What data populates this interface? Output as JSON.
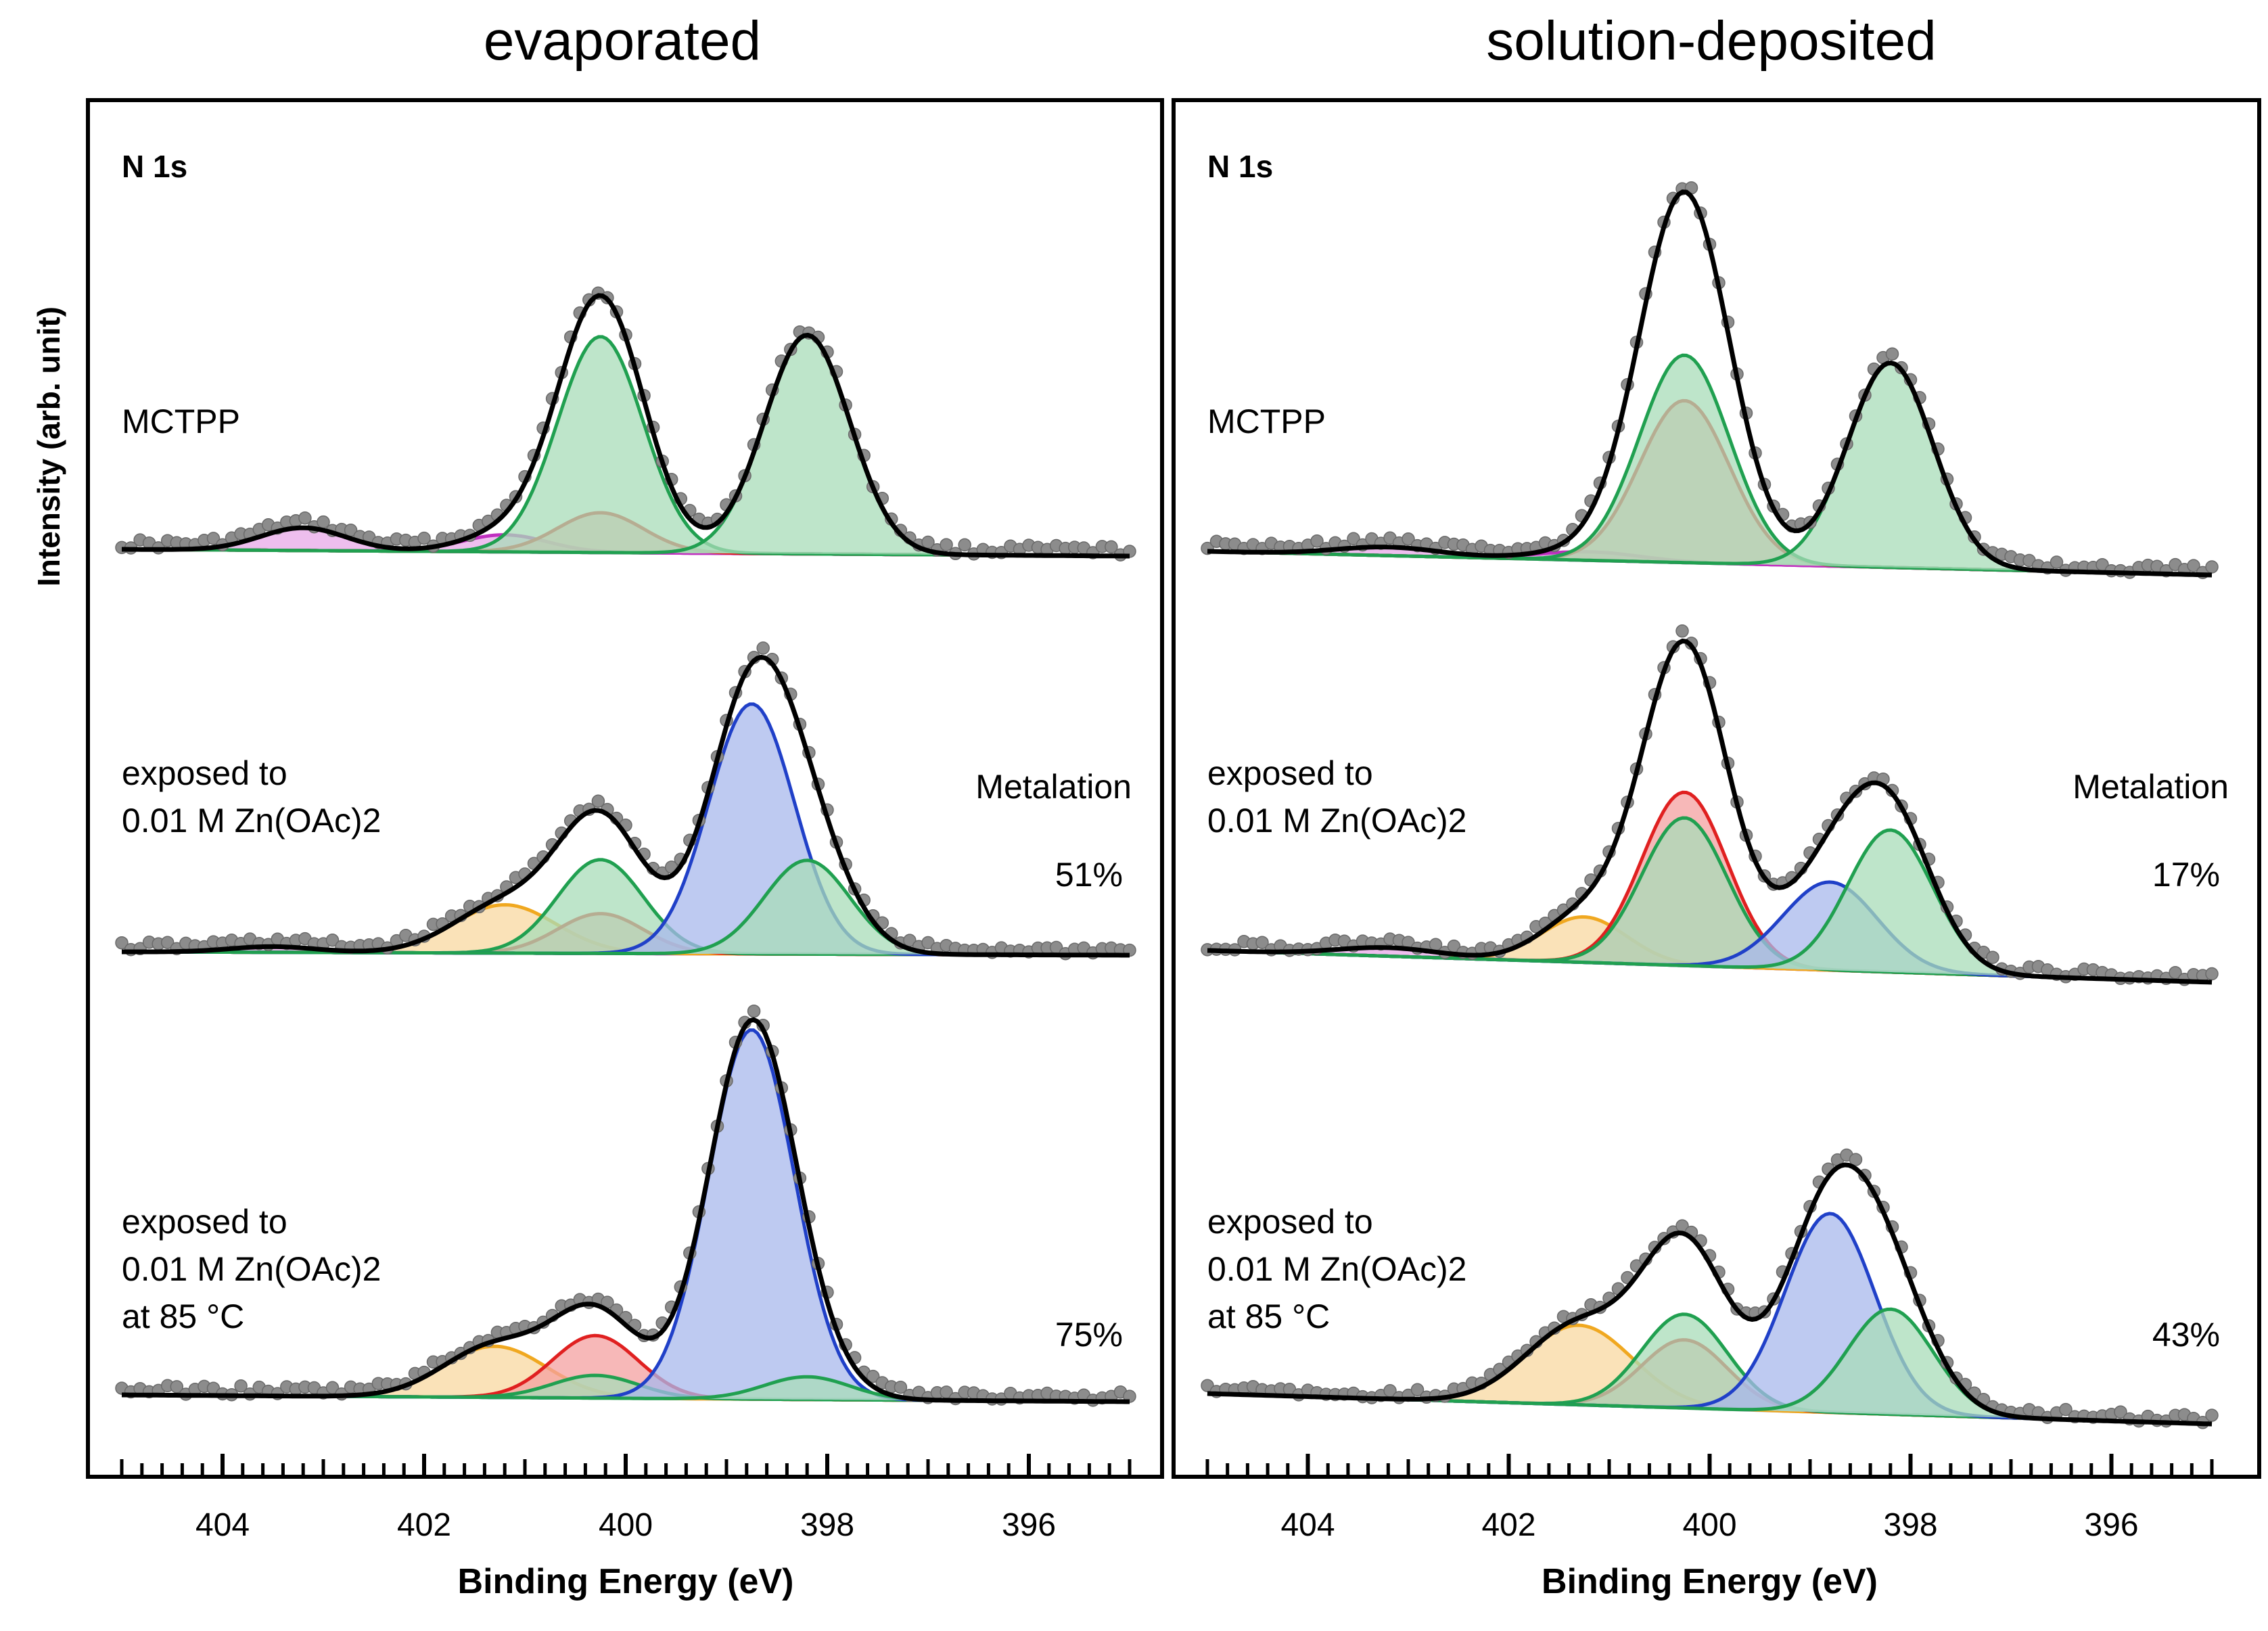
{
  "figure": {
    "ylabel": "Intensity (arb. unit)",
    "colors": {
      "data_points": "#8c8c8c",
      "fit": "#000000",
      "background": "#a6a6a6",
      "magenta": "#c030c0",
      "red": "#e02020",
      "green": "#20a050",
      "blue": "#2040c8",
      "orange": "#f0a820",
      "fill_red": "#f4a0a0",
      "fill_green": "#a8dcb8",
      "fill_blue": "#a8b8ec",
      "fill_orange": "#f8d8a0",
      "fill_magenta": "#e8a8e8"
    }
  },
  "chart_data": [
    {
      "type": "line",
      "title": "evaporated",
      "panel_label": "N 1s",
      "xlabel": "Binding Energy (eV)",
      "ylabel": "Intensity (arb. unit)",
      "xlim": [
        405,
        395
      ],
      "x_reversed": true,
      "xticks": [
        404,
        402,
        400,
        398,
        396
      ],
      "metalation_label": "Metalation",
      "spectra": [
        {
          "label_lines": [
            "MCTPP"
          ],
          "metalation": "",
          "components": [
            {
              "color": "magenta",
              "center": 403.2,
              "fwhm": 1.0,
              "height": 0.08
            },
            {
              "color": "magenta",
              "center": 401.2,
              "fwhm": 1.0,
              "height": 0.06
            },
            {
              "color": "red",
              "center": 400.25,
              "fwhm": 1.0,
              "height": 0.14
            },
            {
              "color": "green",
              "center": 400.25,
              "fwhm": 1.0,
              "height": 0.76
            },
            {
              "color": "green",
              "center": 398.2,
              "fwhm": 1.0,
              "height": 0.77
            }
          ]
        },
        {
          "label_lines": [
            "exposed to",
            "0.01 M Zn(OAc)2"
          ],
          "metalation": "51%",
          "components": [
            {
              "color": "magenta",
              "center": 403.5,
              "fwhm": 1.0,
              "height": 0.02
            },
            {
              "color": "orange",
              "center": 401.2,
              "fwhm": 1.2,
              "height": 0.17
            },
            {
              "color": "red",
              "center": 400.25,
              "fwhm": 1.0,
              "height": 0.14
            },
            {
              "color": "green",
              "center": 400.25,
              "fwhm": 1.0,
              "height": 0.33
            },
            {
              "color": "blue",
              "center": 398.75,
              "fwhm": 1.0,
              "height": 0.88
            },
            {
              "color": "green",
              "center": 398.2,
              "fwhm": 1.0,
              "height": 0.33
            }
          ]
        },
        {
          "label_lines": [
            "exposed to",
            "0.01 M Zn(OAc)2",
            "at 85 °C"
          ],
          "metalation": "75%",
          "components": [
            {
              "color": "orange",
              "center": 401.3,
              "fwhm": 1.2,
              "height": 0.18
            },
            {
              "color": "red",
              "center": 400.3,
              "fwhm": 1.0,
              "height": 0.22
            },
            {
              "color": "green",
              "center": 400.3,
              "fwhm": 1.0,
              "height": 0.08
            },
            {
              "color": "blue",
              "center": 398.75,
              "fwhm": 1.0,
              "height": 1.3
            },
            {
              "color": "green",
              "center": 398.2,
              "fwhm": 1.0,
              "height": 0.08
            }
          ]
        }
      ]
    },
    {
      "type": "line",
      "title": "solution-deposited",
      "panel_label": "N 1s",
      "xlabel": "Binding Energy (eV)",
      "ylabel": "Intensity (arb. unit)",
      "xlim": [
        405,
        395
      ],
      "x_reversed": true,
      "xticks": [
        404,
        402,
        400,
        398,
        396
      ],
      "metalation_label": "Metalation",
      "spectra": [
        {
          "label_lines": [
            "MCTPP"
          ],
          "metalation": "",
          "components": [
            {
              "color": "magenta",
              "center": 403.2,
              "fwhm": 1.2,
              "height": 0.03
            },
            {
              "color": "magenta",
              "center": 401.2,
              "fwhm": 1.2,
              "height": 0.03
            },
            {
              "color": "red",
              "center": 400.25,
              "fwhm": 1.05,
              "height": 0.57
            },
            {
              "color": "green",
              "center": 400.25,
              "fwhm": 1.05,
              "height": 0.73
            },
            {
              "color": "green",
              "center": 398.2,
              "fwhm": 1.0,
              "height": 0.72
            }
          ]
        },
        {
          "label_lines": [
            "exposed to",
            "0.01 M Zn(OAc)2"
          ],
          "metalation": "17%",
          "components": [
            {
              "color": "magenta",
              "center": 403.2,
              "fwhm": 1.2,
              "height": 0.03
            },
            {
              "color": "orange",
              "center": 401.25,
              "fwhm": 1.0,
              "height": 0.16
            },
            {
              "color": "red",
              "center": 400.25,
              "fwhm": 1.0,
              "height": 0.61
            },
            {
              "color": "green",
              "center": 400.25,
              "fwhm": 1.0,
              "height": 0.52
            },
            {
              "color": "blue",
              "center": 398.8,
              "fwhm": 1.1,
              "height": 0.31
            },
            {
              "color": "green",
              "center": 398.2,
              "fwhm": 1.0,
              "height": 0.5
            }
          ]
        },
        {
          "label_lines": [
            "exposed to",
            "0.01 M Zn(OAc)2",
            "at 85 °C"
          ],
          "metalation": "43%",
          "components": [
            {
              "color": "orange",
              "center": 401.3,
              "fwhm": 1.25,
              "height": 0.28
            },
            {
              "color": "red",
              "center": 400.25,
              "fwhm": 1.0,
              "height": 0.24
            },
            {
              "color": "green",
              "center": 400.25,
              "fwhm": 1.0,
              "height": 0.33
            },
            {
              "color": "blue",
              "center": 398.8,
              "fwhm": 1.05,
              "height": 0.7
            },
            {
              "color": "green",
              "center": 398.2,
              "fwhm": 1.0,
              "height": 0.37
            }
          ]
        }
      ]
    }
  ]
}
